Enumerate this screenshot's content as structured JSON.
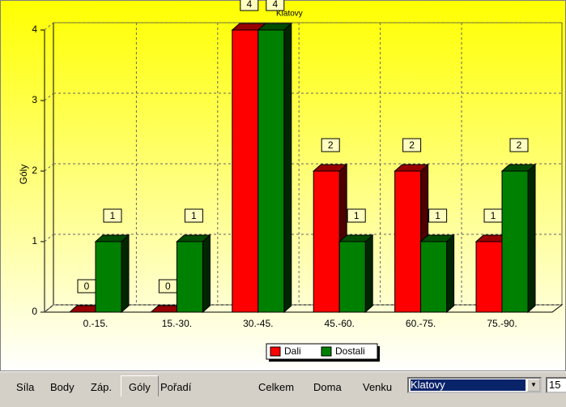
{
  "chart_data": {
    "type": "bar3d",
    "title": "Klatovy",
    "y_label": "Góly",
    "categories": [
      "0.-15.",
      "15.-30.",
      "30.-45.",
      "45.-60.",
      "60.-75.",
      "75.-90."
    ],
    "series": [
      {
        "name": "Dali",
        "color": "#ff0000",
        "values": [
          0,
          0,
          4,
          2,
          2,
          1
        ]
      },
      {
        "name": "Dostali",
        "color": "#008000",
        "values": [
          1,
          1,
          4,
          1,
          1,
          2
        ]
      }
    ],
    "ylim": [
      0,
      4
    ],
    "yticks": [
      0,
      1,
      2,
      3,
      4
    ],
    "grid": true,
    "legend": "bottom",
    "value_boxes": true
  },
  "ui": {
    "tabs": [
      "Síla",
      "Body",
      "Záp.",
      "Góly",
      "Pořadí"
    ],
    "selected_tab": 3,
    "buttons": [
      "Celkem",
      "Doma",
      "Venku"
    ],
    "combo": "Klatovy",
    "field": "15"
  }
}
